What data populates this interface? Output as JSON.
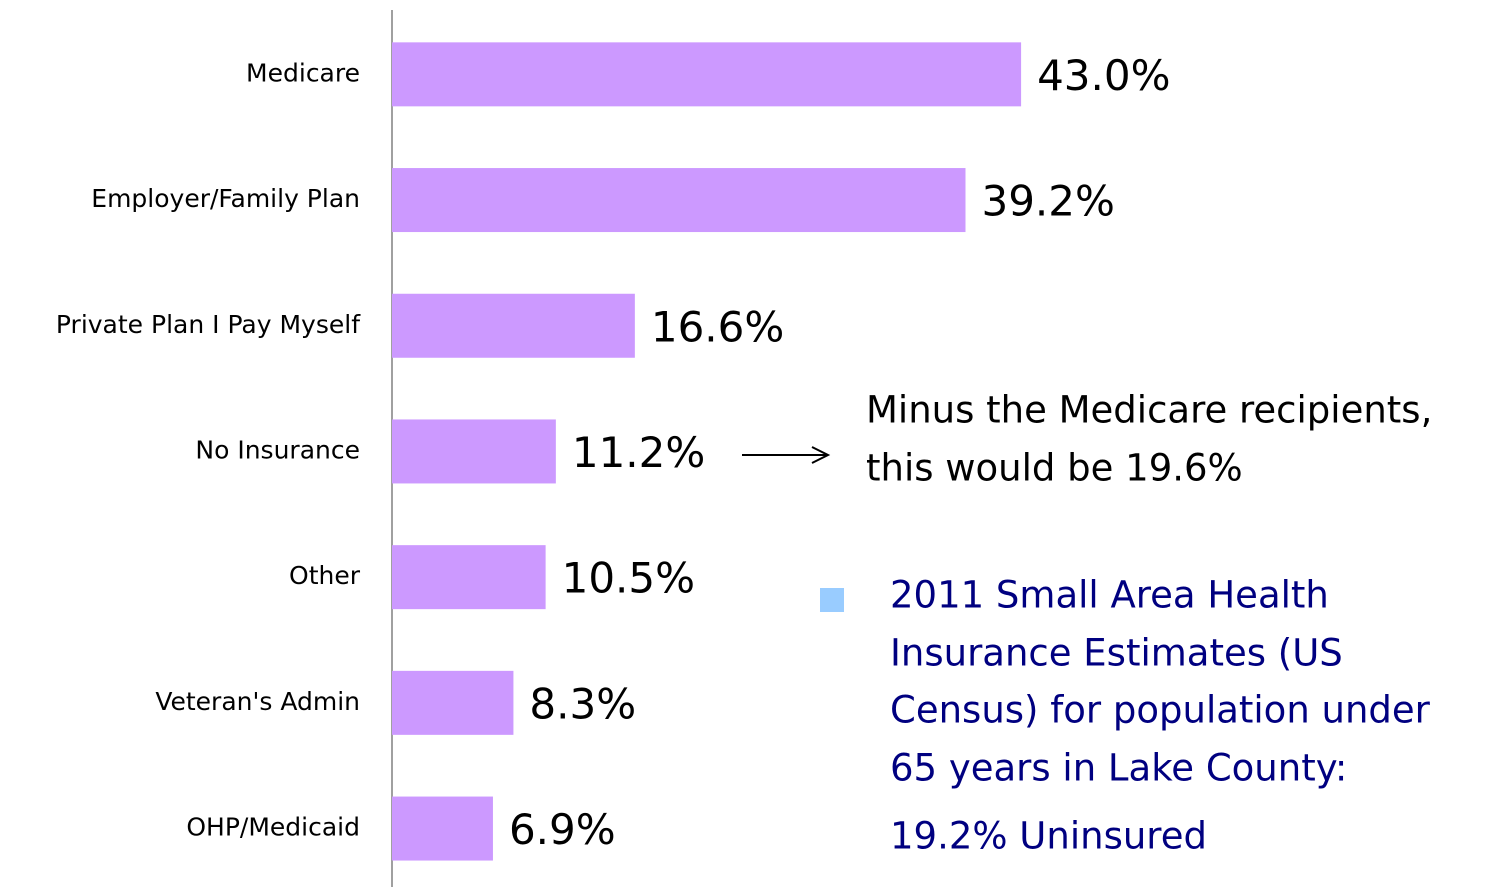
{
  "chart_data": {
    "type": "bar",
    "orientation": "horizontal",
    "categories": [
      "Medicare",
      "Employer/Family Plan",
      "Private Plan I Pay Myself",
      "No Insurance",
      "Other",
      "Veteran's Admin",
      "OHP/Medicaid"
    ],
    "values": [
      43.0,
      39.2,
      16.6,
      11.2,
      10.5,
      8.3,
      6.9
    ],
    "value_labels": [
      "43.0%",
      "39.2%",
      "16.6%",
      "11.2%",
      "10.5%",
      "8.3%",
      "6.9%"
    ],
    "color": "#cc99ff",
    "annotations": [
      [
        "Minus the Medicare recipients,",
        "this would be 19.6%"
      ],
      [
        "2011 Small Area Health",
        "Insurance Estimates (US",
        "Census) for population under",
        "65 years in Lake County:",
        "19.2% Uninsured"
      ]
    ]
  }
}
